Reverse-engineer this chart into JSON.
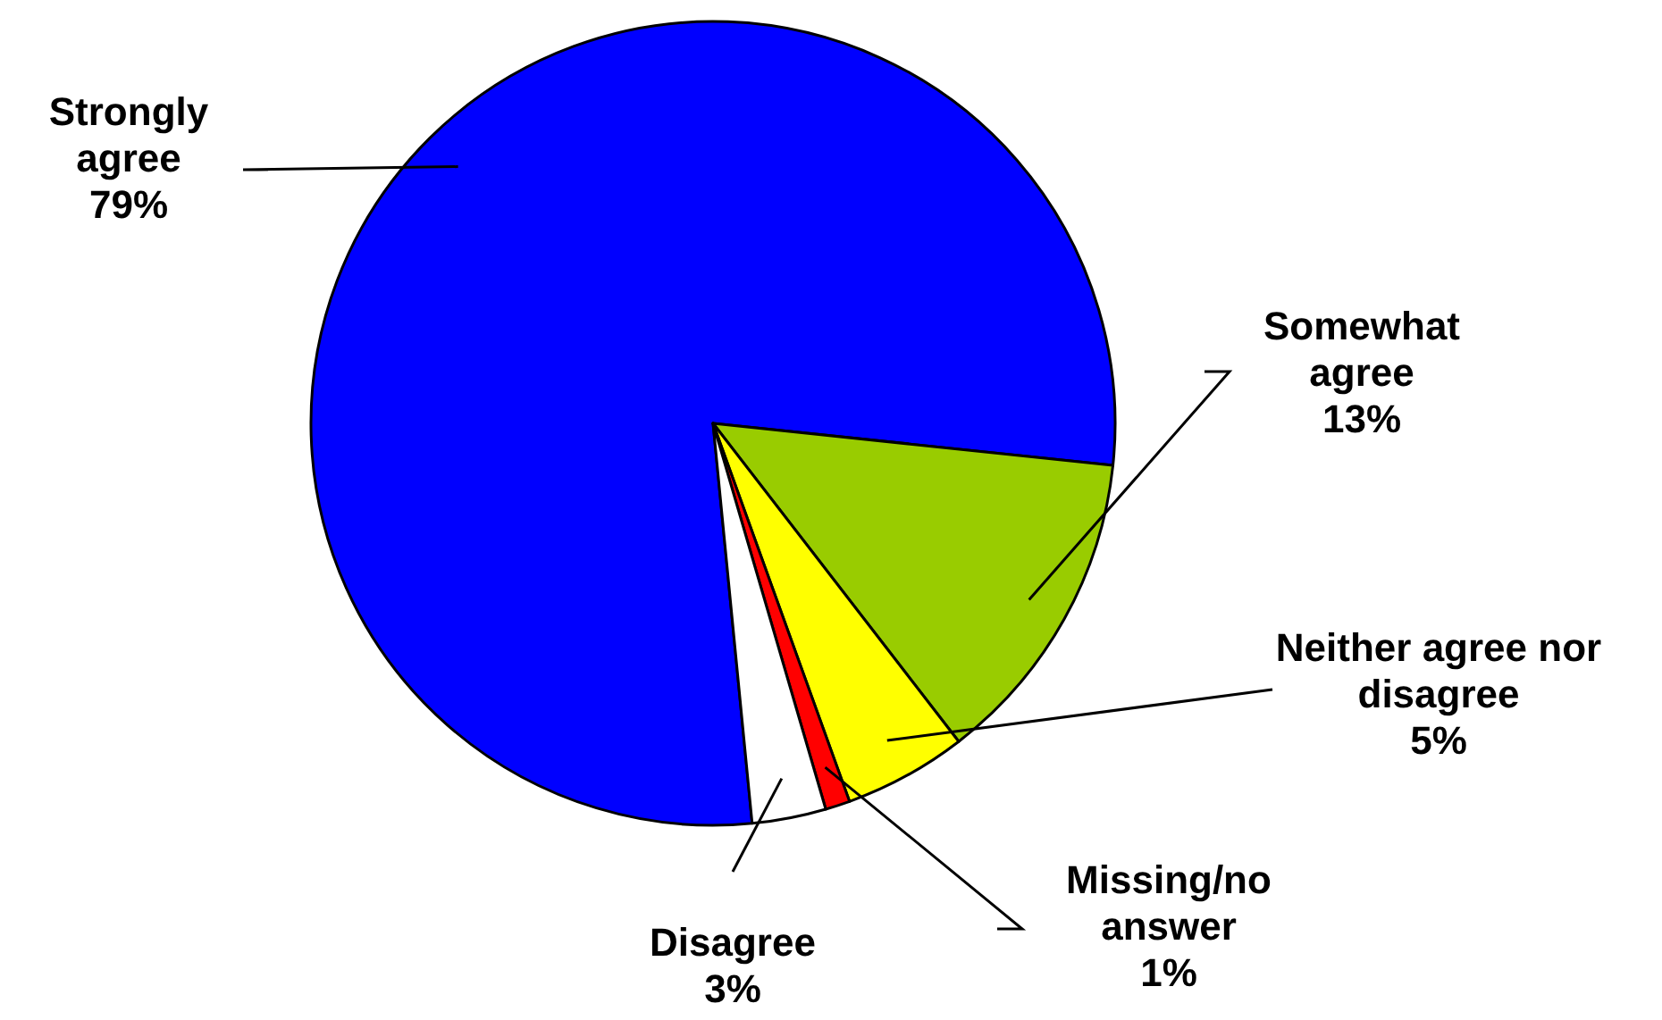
{
  "chart_data": {
    "type": "pie",
    "categories": [
      "Strongly agree",
      "Somewhat agree",
      "Neither agree nor disagree",
      "Missing/no answer",
      "Disagree"
    ],
    "values": [
      79,
      13,
      5,
      1,
      3
    ],
    "value_labels": [
      "79%",
      "13%",
      "5%",
      "1%",
      "3%"
    ],
    "colors": [
      "#0000ff",
      "#99cc00",
      "#ffff00",
      "#ff0000",
      "#ffffff"
    ]
  }
}
